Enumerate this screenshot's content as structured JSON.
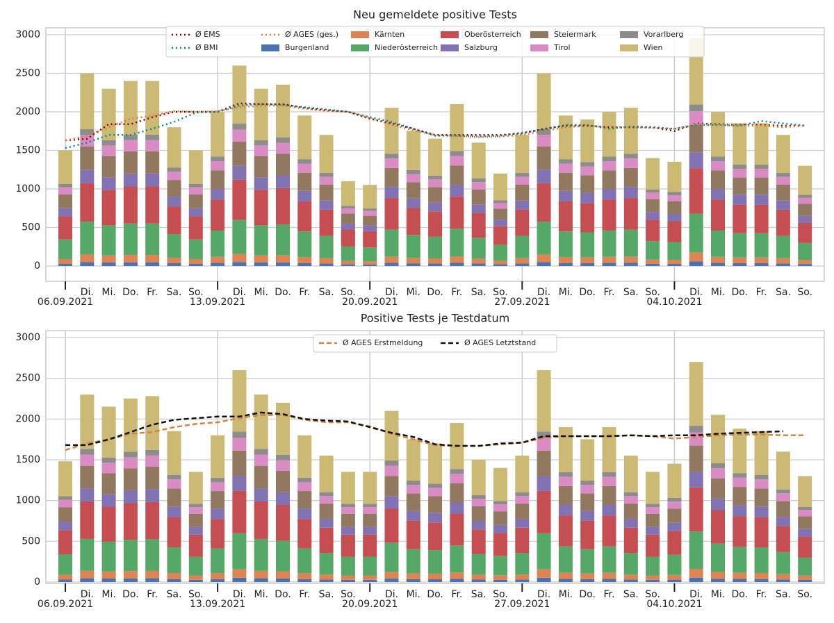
{
  "chart_data": [
    {
      "type": "bar",
      "stacked": true,
      "title": "Neu gemeldete positive Tests",
      "categories": [
        "06.09.2021",
        "Di.",
        "Mi.",
        "Do.",
        "Fr.",
        "Sa.",
        "So.",
        "13.09.2021",
        "Di.",
        "Mi.",
        "Do.",
        "Fr.",
        "Sa.",
        "So.",
        "20.09.2021",
        "Di.",
        "Mi.",
        "Do.",
        "Fr.",
        "Sa.",
        "So.",
        "27.09.2021",
        "Di.",
        "Mi.",
        "Do.",
        "Fr.",
        "Sa.",
        "So.",
        "04.10.2021",
        "Di.",
        "Mi.",
        "Do.",
        "Fr.",
        "Sa.",
        "So."
      ],
      "ylim": [
        -198,
        3090
      ],
      "yticks": [
        0,
        500,
        1000,
        1500,
        2000,
        2500,
        3000
      ],
      "grid": true,
      "series": [
        {
          "type": "line",
          "style": "dotted",
          "name": "Ø EMS",
          "color": "#8b0000",
          "values": [
            1630,
            1650,
            1840,
            1840,
            1930,
            2000,
            2000,
            2000,
            2110,
            2100,
            2100,
            2050,
            2020,
            2000,
            1910,
            1850,
            1780,
            1700,
            1700,
            1700,
            1700,
            1720,
            1780,
            1820,
            1820,
            1800,
            1800,
            1800,
            1750,
            1850,
            1840,
            1830,
            1830,
            1820,
            1820
          ]
        },
        {
          "type": "line",
          "style": "dotted",
          "name": "Ø BMI",
          "color": "#008b8b",
          "values": [
            1530,
            1600,
            1700,
            1700,
            1780,
            1870,
            1990,
            2000,
            2080,
            2100,
            2090,
            2060,
            2030,
            2000,
            1930,
            1870,
            1780,
            1690,
            1690,
            1680,
            1690,
            1730,
            1770,
            1830,
            1830,
            1780,
            1810,
            1800,
            1780,
            1830,
            1830,
            1820,
            1880,
            1850,
            1820
          ]
        },
        {
          "type": "line",
          "style": "dotted",
          "name": "Ø AGES (ges.)",
          "color": "#e07b39",
          "values": [
            1630,
            1690,
            1800,
            1910,
            1950,
            2010,
            2000,
            2010,
            2060,
            2080,
            2080,
            2040,
            2010,
            2000,
            1920,
            1830,
            1760,
            1700,
            1690,
            1670,
            1680,
            1700,
            1750,
            1800,
            1820,
            1800,
            1800,
            1790,
            1780,
            1840,
            1830,
            1820,
            1820,
            1800,
            1820
          ]
        },
        {
          "type": "bar",
          "name": "Burgenland",
          "color": "#4c72b0",
          "values": [
            30,
            50,
            46,
            48,
            48,
            36,
            30,
            40,
            52,
            46,
            47,
            39,
            34,
            22,
            21,
            41,
            35,
            33,
            42,
            32,
            24,
            34,
            50,
            39,
            38,
            40,
            41,
            28,
            27,
            59,
            40,
            37,
            37,
            34,
            26
          ]
        },
        {
          "type": "bar",
          "name": "Kärnten",
          "color": "#dd8452",
          "values": [
            60,
            100,
            92,
            96,
            96,
            72,
            60,
            80,
            104,
            92,
            94,
            78,
            68,
            44,
            42,
            82,
            70,
            66,
            84,
            64,
            48,
            68,
            100,
            78,
            76,
            80,
            82,
            56,
            54,
            118,
            80,
            74,
            74,
            68,
            52
          ]
        },
        {
          "type": "bar",
          "name": "Niederösterreich",
          "color": "#55a868",
          "values": [
            255,
            425,
            391,
            408,
            408,
            306,
            255,
            340,
            442,
            391,
            400,
            332,
            289,
            187,
            179,
            349,
            298,
            281,
            357,
            272,
            204,
            289,
            425,
            332,
            323,
            340,
            349,
            238,
            230,
            502,
            340,
            315,
            315,
            289,
            221
          ]
        },
        {
          "type": "bar",
          "name": "Oberösterreich",
          "color": "#c44e52",
          "values": [
            300,
            500,
            460,
            480,
            480,
            360,
            300,
            400,
            520,
            460,
            470,
            390,
            340,
            220,
            210,
            410,
            350,
            330,
            420,
            320,
            240,
            340,
            500,
            390,
            380,
            400,
            410,
            280,
            270,
            590,
            400,
            370,
            370,
            340,
            260
          ]
        },
        {
          "type": "bar",
          "name": "Salzburg",
          "color": "#8172b3",
          "values": [
            105,
            175,
            161,
            168,
            168,
            126,
            105,
            140,
            182,
            161,
            165,
            137,
            119,
            77,
            74,
            144,
            123,
            116,
            147,
            112,
            84,
            119,
            175,
            137,
            133,
            140,
            144,
            98,
            95,
            207,
            140,
            130,
            130,
            119,
            91
          ]
        },
        {
          "type": "bar",
          "name": "Steiermark",
          "color": "#937860",
          "values": [
            180,
            300,
            276,
            288,
            288,
            216,
            180,
            240,
            312,
            276,
            282,
            234,
            204,
            132,
            126,
            246,
            210,
            198,
            252,
            192,
            144,
            204,
            300,
            234,
            228,
            240,
            246,
            168,
            162,
            354,
            240,
            222,
            222,
            204,
            156
          ]
        },
        {
          "type": "bar",
          "name": "Tirol",
          "color": "#da8bc3",
          "values": [
            90,
            150,
            138,
            144,
            144,
            108,
            90,
            120,
            156,
            138,
            141,
            117,
            102,
            66,
            63,
            123,
            105,
            99,
            126,
            96,
            72,
            102,
            150,
            117,
            114,
            120,
            123,
            84,
            81,
            177,
            120,
            111,
            111,
            102,
            78
          ]
        },
        {
          "type": "bar",
          "name": "Vorarlberg",
          "color": "#8c8c8c",
          "values": [
            45,
            75,
            69,
            72,
            72,
            54,
            45,
            60,
            78,
            69,
            71,
            59,
            51,
            33,
            32,
            62,
            53,
            50,
            63,
            48,
            36,
            51,
            75,
            59,
            57,
            60,
            62,
            42,
            41,
            89,
            60,
            56,
            56,
            51,
            39
          ]
        },
        {
          "type": "bar",
          "name": "Wien",
          "color": "#ccb974",
          "values": [
            435,
            725,
            667,
            696,
            696,
            522,
            435,
            580,
            754,
            667,
            682,
            566,
            493,
            319,
            305,
            595,
            508,
            479,
            609,
            464,
            348,
            493,
            725,
            566,
            551,
            580,
            595,
            406,
            392,
            856,
            580,
            537,
            537,
            493,
            377
          ]
        }
      ]
    },
    {
      "type": "bar",
      "stacked": true,
      "title": "Positive Tests je Testdatum",
      "categories": [
        "06.09.2021",
        "Di.",
        "Mi.",
        "Do.",
        "Fr.",
        "Sa.",
        "So.",
        "13.09.2021",
        "Di.",
        "Mi.",
        "Do.",
        "Fr.",
        "Sa.",
        "So.",
        "20.09.2021",
        "Di.",
        "Mi.",
        "Do.",
        "Fr.",
        "Sa.",
        "So.",
        "27.09.2021",
        "Di.",
        "Mi.",
        "Do.",
        "Fr.",
        "Sa.",
        "So.",
        "04.10.2021",
        "Di.",
        "Mi.",
        "Do.",
        "Fr.",
        "Sa.",
        "So."
      ],
      "ylim": [
        -17,
        3085
      ],
      "yticks": [
        0,
        500,
        1000,
        1500,
        2000,
        2500,
        3000
      ],
      "grid": true,
      "series": [
        {
          "type": "line",
          "style": "dashed",
          "name": "Ø AGES Erstmeldung",
          "color": "#cd853f",
          "values": [
            1620,
            1700,
            1750,
            1820,
            1840,
            1900,
            1940,
            1960,
            2010,
            2050,
            2050,
            1990,
            1960,
            1960,
            1910,
            1820,
            1750,
            1680,
            1670,
            1670,
            1690,
            1710,
            1770,
            1790,
            1790,
            1790,
            1800,
            1790,
            1760,
            1780,
            1800,
            1810,
            1810,
            1800,
            1800
          ]
        },
        {
          "type": "line",
          "style": "dashed",
          "name": "Ø AGES Letztstand",
          "color": "#111111",
          "values": [
            1680,
            1680,
            1750,
            1840,
            1930,
            1990,
            2010,
            2030,
            2030,
            2080,
            2060,
            2000,
            1980,
            1970,
            1900,
            1830,
            1780,
            1690,
            1670,
            1670,
            1700,
            1710,
            1790,
            1790,
            1790,
            1790,
            1800,
            1790,
            1800,
            1800,
            1820,
            1830,
            1840,
            1850,
            null
          ]
        },
        {
          "type": "bar",
          "color": "#4c72b0",
          "values": [
            30,
            46,
            43,
            45,
            46,
            37,
            27,
            36,
            52,
            46,
            44,
            36,
            31,
            27,
            27,
            42,
            35,
            34,
            39,
            30,
            28,
            31,
            52,
            38,
            35,
            38,
            31,
            27,
            29,
            54,
            41,
            38,
            37,
            32,
            26
          ]
        },
        {
          "type": "bar",
          "color": "#dd8452",
          "values": [
            59,
            92,
            86,
            90,
            91,
            74,
            54,
            72,
            104,
            92,
            88,
            72,
            62,
            54,
            54,
            84,
            70,
            68,
            78,
            60,
            56,
            62,
            104,
            76,
            70,
            76,
            62,
            54,
            58,
            108,
            82,
            75,
            74,
            64,
            52
          ]
        },
        {
          "type": "bar",
          "color": "#55a868",
          "values": [
            252,
            391,
            366,
            383,
            388,
            315,
            230,
            306,
            442,
            391,
            374,
            306,
            264,
            230,
            230,
            357,
            298,
            289,
            332,
            255,
            238,
            264,
            442,
            323,
            298,
            323,
            264,
            230,
            247,
            459,
            349,
            320,
            315,
            272,
            221
          ]
        },
        {
          "type": "bar",
          "color": "#c44e52",
          "values": [
            296,
            460,
            430,
            450,
            456,
            370,
            270,
            360,
            520,
            460,
            440,
            360,
            310,
            270,
            270,
            420,
            350,
            340,
            390,
            300,
            280,
            310,
            520,
            380,
            350,
            380,
            310,
            270,
            290,
            540,
            410,
            376,
            370,
            320,
            260
          ]
        },
        {
          "type": "bar",
          "color": "#8172b3",
          "values": [
            104,
            161,
            151,
            158,
            160,
            130,
            95,
            126,
            182,
            161,
            154,
            126,
            109,
            95,
            95,
            147,
            123,
            119,
            137,
            105,
            98,
            109,
            182,
            133,
            123,
            133,
            109,
            95,
            102,
            189,
            144,
            132,
            130,
            112,
            91
          ]
        },
        {
          "type": "bar",
          "color": "#937860",
          "values": [
            178,
            276,
            258,
            270,
            274,
            222,
            162,
            216,
            312,
            276,
            264,
            216,
            186,
            162,
            162,
            252,
            210,
            204,
            234,
            180,
            168,
            186,
            312,
            228,
            210,
            228,
            186,
            162,
            174,
            324,
            246,
            226,
            222,
            192,
            156
          ]
        },
        {
          "type": "bar",
          "color": "#da8bc3",
          "values": [
            89,
            138,
            129,
            135,
            137,
            111,
            81,
            108,
            156,
            138,
            132,
            108,
            93,
            81,
            81,
            126,
            105,
            102,
            117,
            90,
            84,
            93,
            156,
            114,
            105,
            114,
            93,
            81,
            87,
            162,
            123,
            113,
            111,
            96,
            78
          ]
        },
        {
          "type": "bar",
          "color": "#8c8c8c",
          "values": [
            44,
            69,
            65,
            68,
            68,
            56,
            41,
            54,
            78,
            69,
            66,
            54,
            47,
            41,
            41,
            63,
            53,
            51,
            59,
            45,
            42,
            47,
            78,
            57,
            53,
            57,
            47,
            41,
            44,
            81,
            62,
            56,
            56,
            48,
            39
          ]
        },
        {
          "type": "bar",
          "color": "#ccb974",
          "values": [
            429,
            667,
            624,
            653,
            661,
            537,
            392,
            522,
            754,
            667,
            638,
            522,
            450,
            392,
            392,
            609,
            508,
            493,
            566,
            435,
            406,
            450,
            754,
            551,
            508,
            551,
            450,
            392,
            421,
            783,
            595,
            545,
            537,
            464,
            377
          ]
        }
      ]
    }
  ]
}
